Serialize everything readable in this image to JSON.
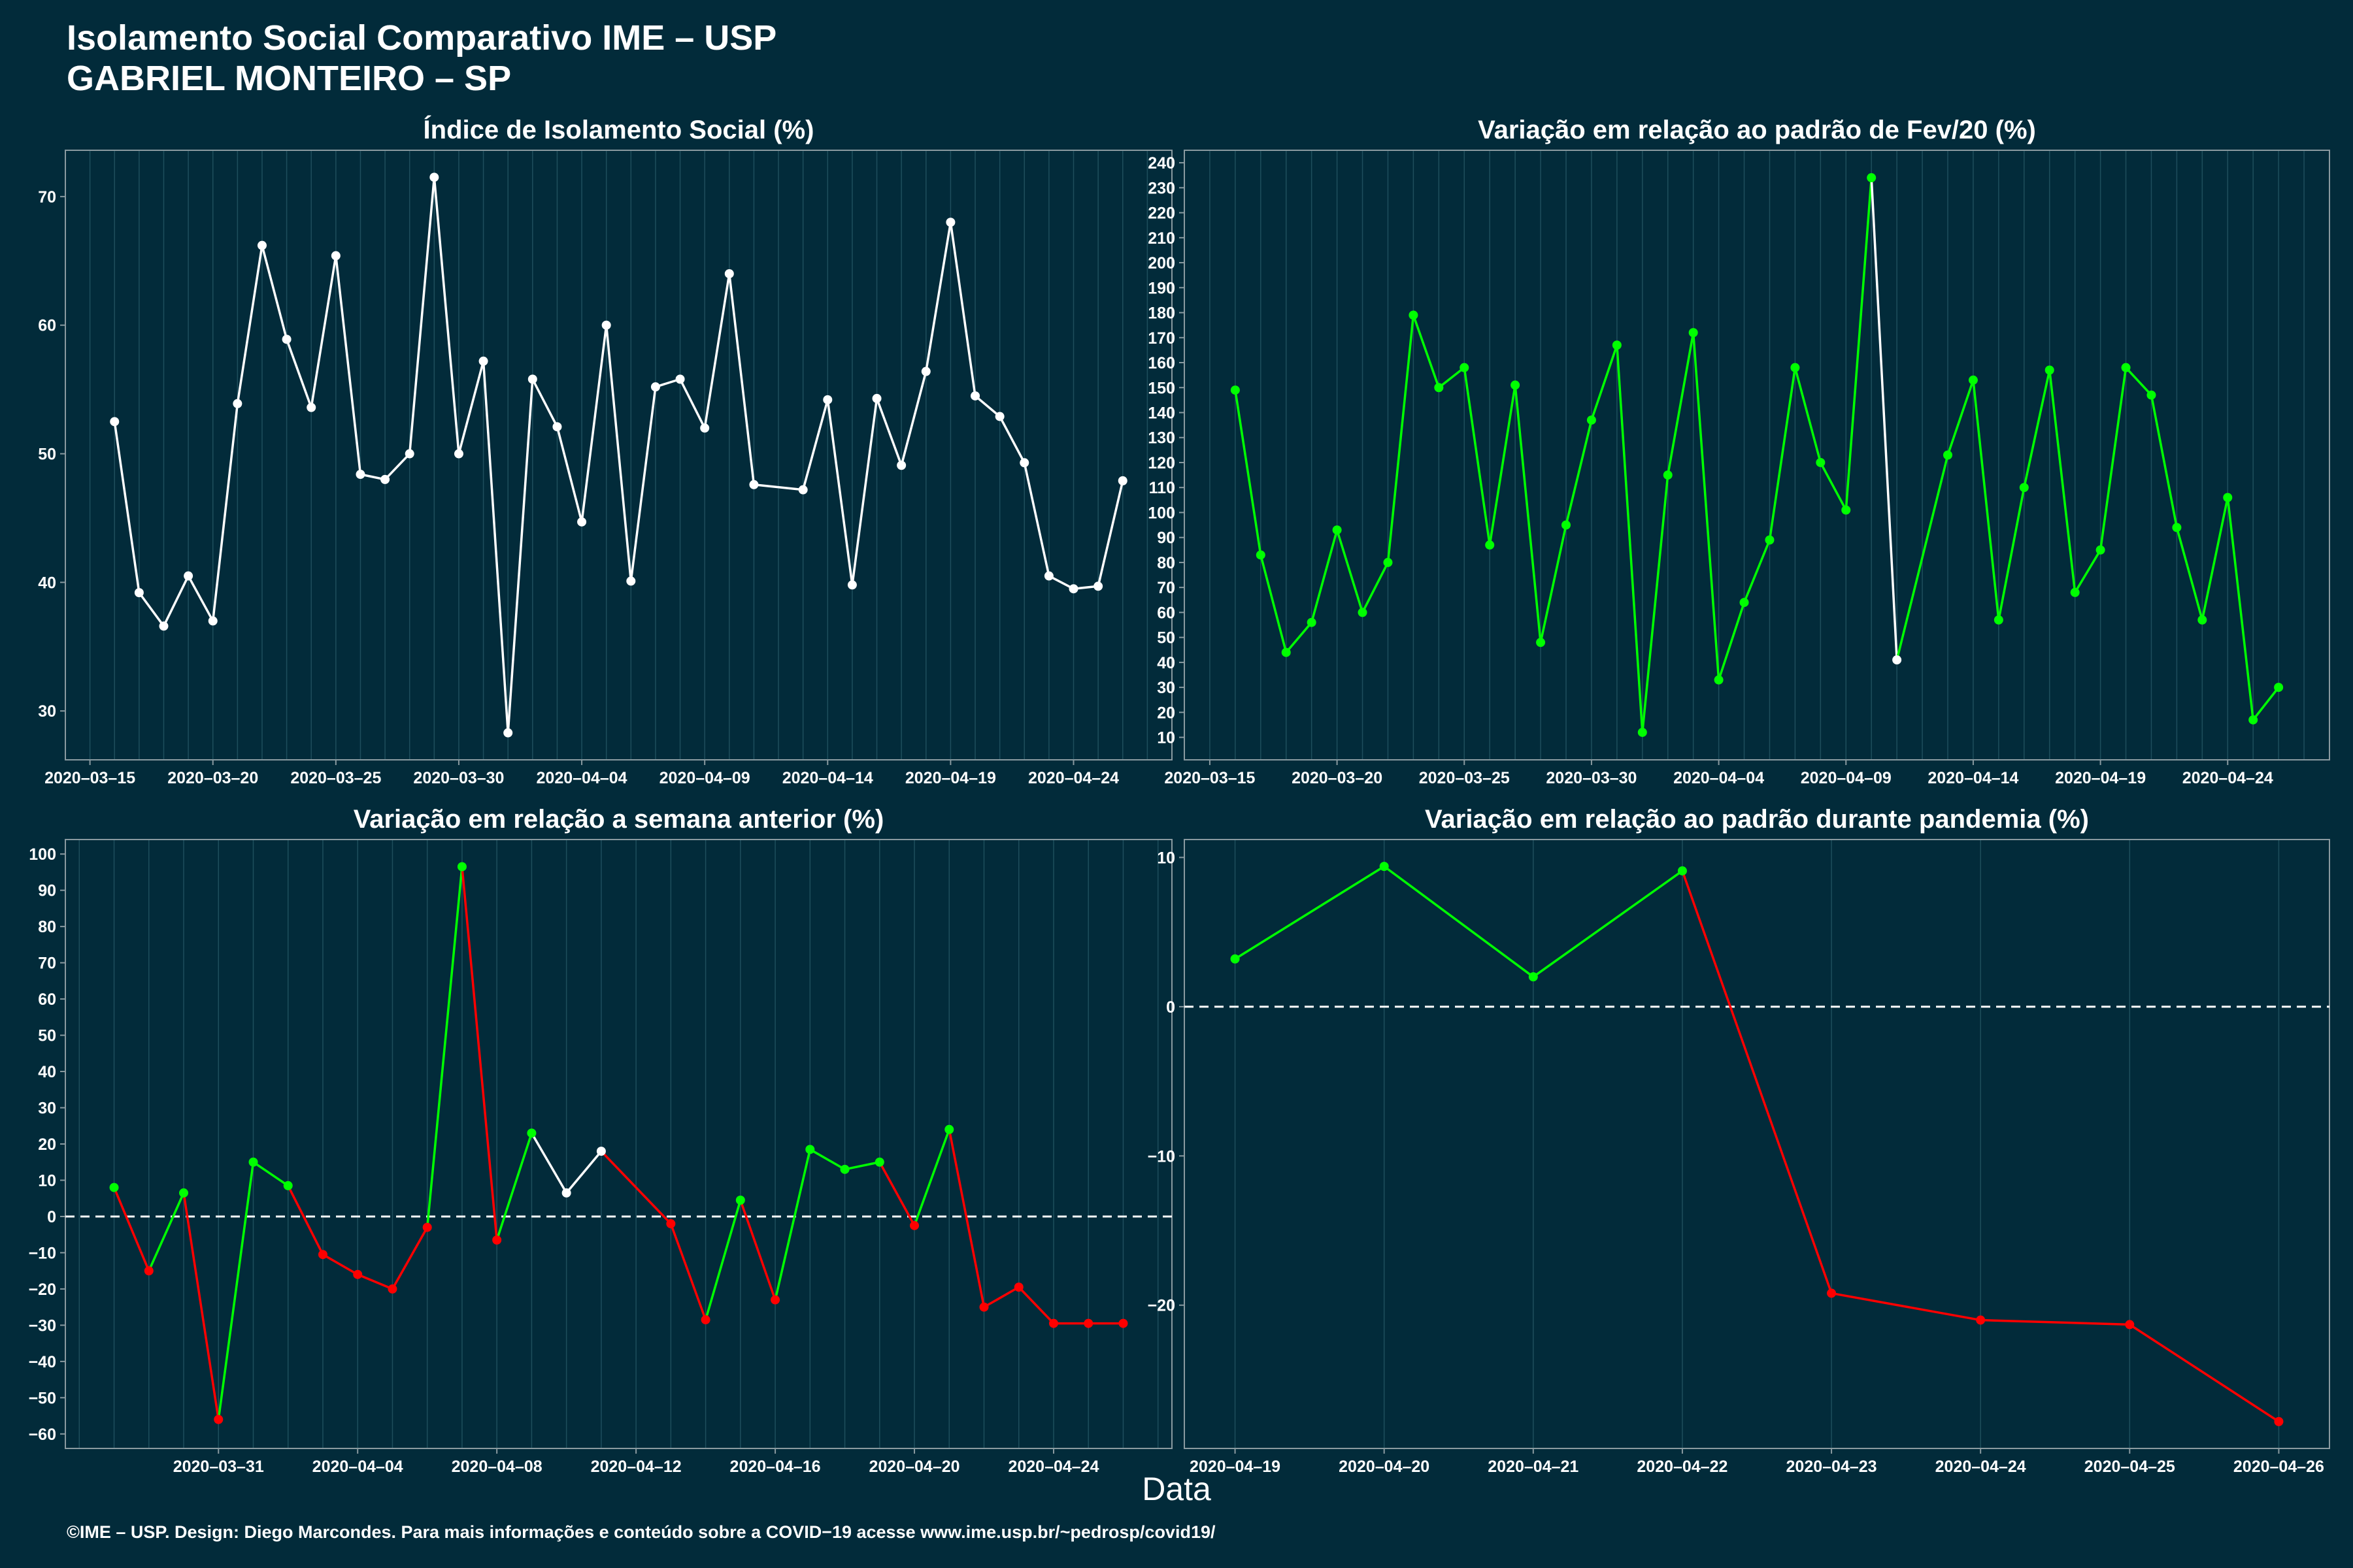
{
  "header": {
    "title_line1": "Isolamento Social Comparativo IME – USP",
    "title_line2": "GABRIEL MONTEIRO – SP"
  },
  "x_axis_label": "Data",
  "footer": "©IME – USP. Design: Diego Marcondes. Para mais informações e conteúdo sobre a COVID−19 acesse www.ime.usp.br/~pedrosp/covid19/",
  "colors": {
    "background": "#022b3a",
    "grid": "#1e4e5c",
    "white": "#ffffff",
    "green": "#00ff00",
    "red": "#ff0000"
  },
  "chart_data": [
    {
      "type": "line",
      "title": "Índice de Isolamento Social (%)",
      "x": [
        "2020-03-16",
        "2020-03-17",
        "2020-03-18",
        "2020-03-19",
        "2020-03-20",
        "2020-03-21",
        "2020-03-22",
        "2020-03-23",
        "2020-03-24",
        "2020-03-25",
        "2020-03-26",
        "2020-03-27",
        "2020-03-28",
        "2020-03-29",
        "2020-03-30",
        "2020-03-31",
        "2020-04-01",
        "2020-04-02",
        "2020-04-03",
        "2020-04-04",
        "2020-04-05",
        "2020-04-06",
        "2020-04-07",
        "2020-04-08",
        "2020-04-09",
        "2020-04-10",
        "2020-04-11",
        "2020-04-13",
        "2020-04-14",
        "2020-04-15",
        "2020-04-16",
        "2020-04-17",
        "2020-04-18",
        "2020-04-19",
        "2020-04-20",
        "2020-04-21",
        "2020-04-22",
        "2020-04-23",
        "2020-04-24",
        "2020-04-25",
        "2020-04-26"
      ],
      "values": [
        52.5,
        39.2,
        36.6,
        40.5,
        37.0,
        53.9,
        66.2,
        58.9,
        53.6,
        65.4,
        48.4,
        48.0,
        50.0,
        71.5,
        50.0,
        57.2,
        28.3,
        55.8,
        52.1,
        44.7,
        60.0,
        40.1,
        55.2,
        55.8,
        52.0,
        64.0,
        47.6,
        47.2,
        54.2,
        39.8,
        54.3,
        49.1,
        56.4,
        68.0,
        54.5,
        52.9,
        49.3,
        40.5,
        39.5,
        39.7,
        47.9
      ],
      "colors": [
        "w",
        "w",
        "w",
        "w",
        "w",
        "w",
        "w",
        "w",
        "w",
        "w",
        "w",
        "w",
        "w",
        "w",
        "w",
        "w",
        "w",
        "w",
        "w",
        "w",
        "w",
        "w",
        "w",
        "w",
        "w",
        "w",
        "w",
        "w",
        "w",
        "w",
        "w",
        "w",
        "w",
        "w",
        "w",
        "w",
        "w",
        "w",
        "w",
        "w",
        "w"
      ],
      "xticks": [
        "2020-03-15",
        "2020-03-20",
        "2020-03-25",
        "2020-03-30",
        "2020-04-04",
        "2020-04-09",
        "2020-04-14",
        "2020-04-19",
        "2020-04-24"
      ],
      "yticks": [
        30,
        40,
        50,
        60,
        70
      ],
      "xlim": [
        "2020-03-14",
        "2020-04-28"
      ],
      "ylim": [
        26.2,
        73.6
      ],
      "grid": true,
      "zero_line": false
    },
    {
      "type": "line",
      "title": "Variação em relação ao padrão de Fev/20 (%)",
      "x": [
        "2020-03-16",
        "2020-03-17",
        "2020-03-18",
        "2020-03-19",
        "2020-03-20",
        "2020-03-21",
        "2020-03-22",
        "2020-03-23",
        "2020-03-24",
        "2020-03-25",
        "2020-03-26",
        "2020-03-27",
        "2020-03-28",
        "2020-03-29",
        "2020-03-30",
        "2020-03-31",
        "2020-04-01",
        "2020-04-02",
        "2020-04-03",
        "2020-04-04",
        "2020-04-05",
        "2020-04-06",
        "2020-04-07",
        "2020-04-08",
        "2020-04-09",
        "2020-04-10",
        "2020-04-11",
        "2020-04-13",
        "2020-04-14",
        "2020-04-15",
        "2020-04-16",
        "2020-04-17",
        "2020-04-18",
        "2020-04-19",
        "2020-04-20",
        "2020-04-21",
        "2020-04-22",
        "2020-04-23",
        "2020-04-24",
        "2020-04-25",
        "2020-04-26"
      ],
      "values": [
        149,
        83,
        44,
        56,
        93,
        60,
        80,
        179,
        150,
        158,
        87,
        151,
        48,
        95,
        137,
        167,
        12,
        115,
        172,
        33,
        64,
        89,
        158,
        120,
        101,
        234,
        41,
        123,
        153,
        57,
        110,
        157,
        68,
        85,
        158,
        147,
        94,
        57,
        106,
        17,
        30
      ],
      "colors": [
        "g",
        "g",
        "g",
        "g",
        "g",
        "g",
        "g",
        "g",
        "g",
        "g",
        "g",
        "g",
        "g",
        "g",
        "g",
        "g",
        "g",
        "g",
        "g",
        "g",
        "g",
        "g",
        "g",
        "g",
        "g",
        "g",
        "w",
        "g",
        "g",
        "g",
        "g",
        "g",
        "g",
        "g",
        "g",
        "g",
        "g",
        "g",
        "g",
        "g",
        "g"
      ],
      "xticks": [
        "2020-03-15",
        "2020-03-20",
        "2020-03-25",
        "2020-03-30",
        "2020-04-04",
        "2020-04-09",
        "2020-04-14",
        "2020-04-19",
        "2020-04-24"
      ],
      "yticks": [
        10,
        20,
        30,
        40,
        50,
        60,
        70,
        80,
        90,
        100,
        110,
        120,
        130,
        140,
        150,
        160,
        170,
        180,
        190,
        200,
        210,
        220,
        230,
        240
      ],
      "xlim": [
        "2020-03-14",
        "2020-04-28"
      ],
      "ylim": [
        1,
        245
      ],
      "grid": true,
      "zero_line": false
    },
    {
      "type": "line",
      "title": "Variação em relação a semana anterior (%)",
      "x": [
        "2020-03-28",
        "2020-03-29",
        "2020-03-30",
        "2020-03-31",
        "2020-04-01",
        "2020-04-02",
        "2020-04-03",
        "2020-04-04",
        "2020-04-05",
        "2020-04-06",
        "2020-04-07",
        "2020-04-08",
        "2020-04-09",
        "2020-04-10",
        "2020-04-11",
        "2020-04-13",
        "2020-04-14",
        "2020-04-15",
        "2020-04-16",
        "2020-04-17",
        "2020-04-18",
        "2020-04-19",
        "2020-04-20",
        "2020-04-21",
        "2020-04-22",
        "2020-04-23",
        "2020-04-24",
        "2020-04-25",
        "2020-04-26"
      ],
      "values": [
        8,
        -15,
        6.5,
        -56,
        15,
        8.5,
        -10.5,
        -16,
        -20,
        -3,
        96.5,
        -6.5,
        23,
        6.5,
        18,
        -2,
        -28.5,
        4.5,
        -23,
        18.5,
        13,
        15,
        -2.5,
        24,
        -25,
        -19.5,
        -29.5,
        -29.5,
        -29.5
      ],
      "colors": [
        "g",
        "r",
        "g",
        "r",
        "g",
        "g",
        "r",
        "r",
        "r",
        "r",
        "g",
        "r",
        "g",
        "w",
        "w",
        "r",
        "r",
        "g",
        "r",
        "g",
        "g",
        "g",
        "r",
        "g",
        "r",
        "r",
        "r",
        "r",
        "r"
      ],
      "xticks": [
        "2020-03-31",
        "2020-04-04",
        "2020-04-08",
        "2020-04-12",
        "2020-04-16",
        "2020-04-20",
        "2020-04-24"
      ],
      "yticks": [
        -60,
        -50,
        -40,
        -30,
        -20,
        -10,
        0,
        10,
        20,
        30,
        40,
        50,
        60,
        70,
        80,
        90,
        100
      ],
      "xlim": [
        "2020-03-26.6",
        "2020-04-27.4"
      ],
      "ylim": [
        -64,
        104
      ],
      "grid": true,
      "zero_line": true
    },
    {
      "type": "line",
      "title": "Variação em relação ao padrão durante pandemia (%)",
      "x": [
        "2020-04-19",
        "2020-04-20",
        "2020-04-21",
        "2020-04-22",
        "2020-04-23",
        "2020-04-24",
        "2020-04-25",
        "2020-04-26"
      ],
      "values": [
        3.2,
        9.4,
        2.0,
        9.1,
        -19.2,
        -21.0,
        -21.3,
        -27.8
      ],
      "colors": [
        "g",
        "g",
        "g",
        "g",
        "r",
        "r",
        "r",
        "r"
      ],
      "xticks": [
        "2020-04-19",
        "2020-04-20",
        "2020-04-21",
        "2020-04-22",
        "2020-04-23",
        "2020-04-24",
        "2020-04-25",
        "2020-04-26"
      ],
      "yticks": [
        -20,
        -10,
        0,
        10
      ],
      "xlim": [
        "2020-04-18.66",
        "2020-04-26.34"
      ],
      "ylim": [
        -29.6,
        11.2
      ],
      "grid": true,
      "zero_line": true
    }
  ]
}
